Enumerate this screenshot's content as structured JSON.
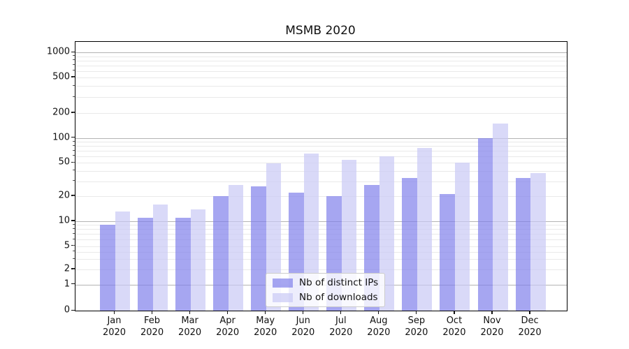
{
  "chart_data": {
    "type": "bar",
    "title": "MSMB 2020",
    "categories": [
      "Jan",
      "Feb",
      "Mar",
      "Apr",
      "May",
      "Jun",
      "Jul",
      "Aug",
      "Sep",
      "Oct",
      "Nov",
      "Dec"
    ],
    "year_label": "2020",
    "series": [
      {
        "name": "Nb of distinct IPs",
        "color": "rgba(128,128,235,0.7)",
        "values": [
          9,
          11,
          11,
          20,
          26,
          22,
          20,
          27,
          33,
          21,
          100,
          33
        ]
      },
      {
        "name": "Nb of downloads",
        "color": "rgba(201,201,245,0.7)",
        "values": [
          13,
          16,
          14,
          27,
          49,
          65,
          54,
          60,
          75,
          50,
          150,
          38
        ]
      }
    ],
    "xlabel": "",
    "ylabel": "",
    "yscale": "log (linear segment near zero)",
    "y_ticks": [
      0,
      1,
      2,
      5,
      10,
      20,
      50,
      100,
      200,
      500,
      1000
    ],
    "ylim": [
      0,
      1350
    ],
    "grid": {
      "horizontal": true,
      "major_color": "#b3b3b3",
      "minor_color": "#e9e9e9"
    },
    "legend": {
      "position": "lower-center"
    }
  }
}
